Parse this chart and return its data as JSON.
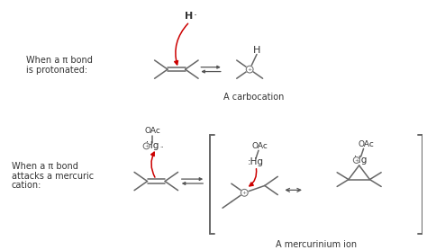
{
  "bg_color": "#ffffff",
  "text_color": "#333333",
  "bond_color": "#666666",
  "arrow_color": "#cc0000",
  "reaction_arrow_color": "#555555",
  "label1_line1": "When a π bond",
  "label1_line2": "is protonated:",
  "label2_line1": "When a π bond",
  "label2_line2": "attacks a mercuric",
  "label2_line3": "cation:",
  "caption1": "A carbocation",
  "caption2": "A mercurinium ion",
  "figsize": [
    4.74,
    2.78
  ],
  "dpi": 100
}
